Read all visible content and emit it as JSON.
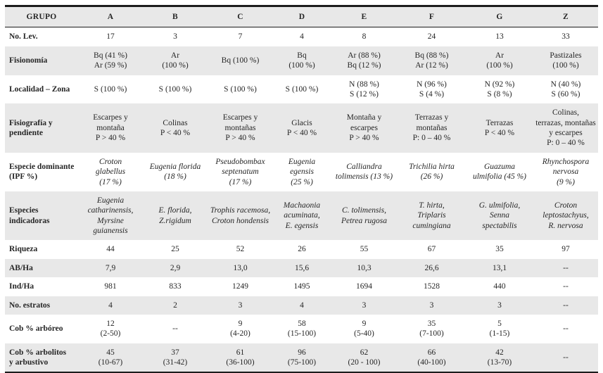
{
  "colors": {
    "shaded_row": "#e8e8e8",
    "border": "#1c1c1c",
    "text": "#262626"
  },
  "table": {
    "header": [
      "GRUPO",
      "A",
      "B",
      "C",
      "D",
      "E",
      "F",
      "G",
      "Z"
    ],
    "rows": [
      {
        "label": "No. Lev.",
        "cells": [
          "17",
          "3",
          "7",
          "4",
          "8",
          "24",
          "13",
          "33"
        ]
      },
      {
        "label": "Fisionomía",
        "cells": [
          "Bq (41 %)\nAr (59 %)",
          "Ar\n(100 %)",
          "Bq (100 %)",
          "Bq\n(100 %)",
          "Ar (88 %)\nBq (12 %)",
          "Bq (88 %)\nAr (12 %)",
          "Ar\n(100 %)",
          "Pastizales\n(100 %)"
        ]
      },
      {
        "label": "Localidad – Zona",
        "cells": [
          "S (100 %)",
          "S (100 %)",
          "S (100 %)",
          "S (100 %)",
          "N (88 %)\nS (12 %)",
          "N (96 %)\nS (4 %)",
          "N (92 %)\nS (8 %)",
          "N (40 %)\nS (60 %)"
        ]
      },
      {
        "label": "Fisiografía y pendiente",
        "cells": [
          "Escarpes y\nmontaña\nP > 40 %",
          "Colinas\nP < 40 %",
          "Escarpes y\nmontañas\nP > 40 %",
          "Glacis\nP < 40 %",
          "Montaña y\nescarpes\nP > 40 %",
          "Terrazas y\nmontañas\nP: 0 – 40 %",
          "Terrazas\nP < 40 %",
          "Colinas,\nterrazas, montañas\ny escarpes\nP: 0 – 40 %"
        ]
      },
      {
        "label": "Especie dominante\n(IPF %)",
        "cells": [
          "Croton\nglabellus\n(17 %)",
          "Eugenia florida\n(18 %)",
          "Pseudobombax\nseptenatum\n(17 %)",
          "Eugenia\negensis\n(25 %)",
          "Calliandra\ntolimensis (13 %)",
          "Trichilia hirta\n(26 %)",
          "Guazuma\nulmifolia (45 %)",
          "Rhynchospora\nnervosa\n(9 %)"
        ]
      },
      {
        "label": "Especies\nindicadoras",
        "cells": [
          "Eugenia\ncatharinensis,\nMyrsine\nguianensis",
          "E. florida,\nZ.rigidum",
          "Trophis racemosa,\nCroton hondensis",
          "Machaonia\nacuminata,\nE. egensis",
          "C. tolimensis,\nPetrea rugosa",
          "T. hirta,\nTriplaris\ncumingiana",
          "G. ulmifolia,\nSenna\nspectabilis",
          "Croton\nleptostachyus,\nR. nervosa"
        ]
      },
      {
        "label": "Riqueza",
        "cells": [
          "44",
          "25",
          "52",
          "26",
          "55",
          "67",
          "35",
          "97"
        ]
      },
      {
        "label": "AB/Ha",
        "cells": [
          "7,9",
          "2,9",
          "13,0",
          "15,6",
          "10,3",
          "26,6",
          "13,1",
          "--"
        ]
      },
      {
        "label": "Ind/Ha",
        "cells": [
          "981",
          "833",
          "1249",
          "1495",
          "1694",
          "1528",
          "440",
          "--"
        ]
      },
      {
        "label": "No. estratos",
        "cells": [
          "4",
          "2",
          "3",
          "4",
          "3",
          "3",
          "3",
          "--"
        ]
      },
      {
        "label": "Cob % arbóreo",
        "cells": [
          "12\n(2-50)",
          "--",
          "9\n(4-20)",
          "58\n(15-100)",
          "9\n(5-40)",
          "35\n(7-100)",
          "5\n(1-15)",
          "--"
        ]
      },
      {
        "label": "Cob % arbolitos\ny arbustivo",
        "cells": [
          "45\n(10-67)",
          "37\n(31-42)",
          "61\n(36-100)",
          "96\n(75-100)",
          "62\n(20 - 100)",
          "66\n(40-100)",
          "42\n(13-70)",
          "--"
        ]
      }
    ]
  }
}
